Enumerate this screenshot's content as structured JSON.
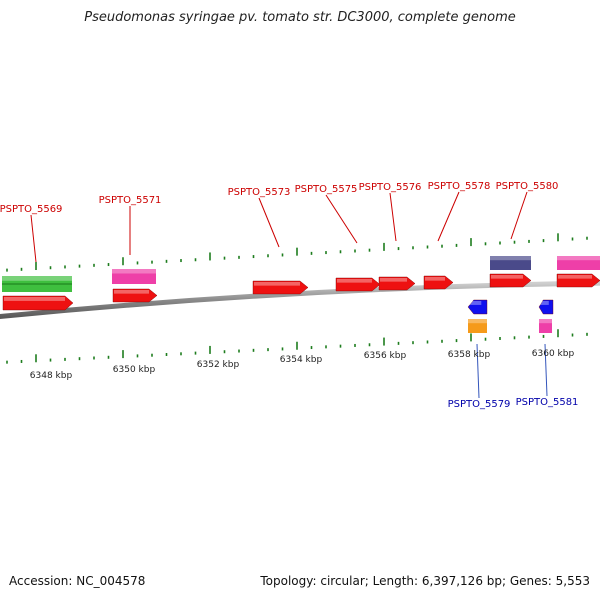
{
  "title": "Pseudomonas syringae pv. tomato str. DC3000, complete genome",
  "colors": {
    "backbone": "#8a8a8a",
    "tick": "#1e7d1e",
    "forward_label": "#cc0000",
    "reverse_label": "#0000aa",
    "leader_forward": "#cc0000",
    "leader_reverse": "#3355bb"
  },
  "scale": {
    "unit": "kbp",
    "tick_labels": [
      {
        "kbp": 6348,
        "text": "6348 kbp"
      },
      {
        "kbp": 6350,
        "text": "6350 kbp"
      },
      {
        "kbp": 6352,
        "text": "6352 kbp"
      },
      {
        "kbp": 6354,
        "text": "6354 kbp"
      },
      {
        "kbp": 6356,
        "text": "6356 kbp"
      },
      {
        "kbp": 6358,
        "text": "6358 kbp"
      },
      {
        "kbp": 6360,
        "text": "6360 kbp"
      }
    ]
  },
  "genes": [
    {
      "label": "PSPTO_5569",
      "strand": "forward",
      "color": "#ee1111"
    },
    {
      "label": "PSPTO_5571",
      "strand": "forward",
      "color": "#ee1111"
    },
    {
      "label": "PSPTO_5573",
      "strand": "forward",
      "color": "#ee1111"
    },
    {
      "label": "PSPTO_5575",
      "strand": "forward",
      "color": "#ee1111"
    },
    {
      "label": "PSPTO_5576",
      "strand": "forward",
      "color": "#ee1111"
    },
    {
      "label": "PSPTO_5578",
      "strand": "forward",
      "color": "#ee1111"
    },
    {
      "label": "PSPTO_5580",
      "strand": "forward",
      "color": "#ee1111"
    },
    {
      "label": "",
      "strand": "forward",
      "color": "#ee1111"
    },
    {
      "label": "PSPTO_5579",
      "strand": "reverse",
      "color": "#1010ee"
    },
    {
      "label": "PSPTO_5581",
      "strand": "reverse",
      "color": "#1010ee"
    }
  ],
  "features": [
    {
      "kind": "forward-feature",
      "color": "#3fbf3f"
    },
    {
      "kind": "forward-feature",
      "color": "#ee3fa8"
    },
    {
      "kind": "forward-feature",
      "color": "#4a4a8a"
    },
    {
      "kind": "forward-feature",
      "color": "#ee3fa8"
    },
    {
      "kind": "reverse-feature",
      "color": "#f59a1a"
    },
    {
      "kind": "reverse-feature",
      "color": "#ee3fa8"
    }
  ],
  "footer": {
    "accession": "Accession: NC_004578",
    "stats": "Topology: circular; Length: 6,397,126 bp; Genes: 5,553"
  }
}
